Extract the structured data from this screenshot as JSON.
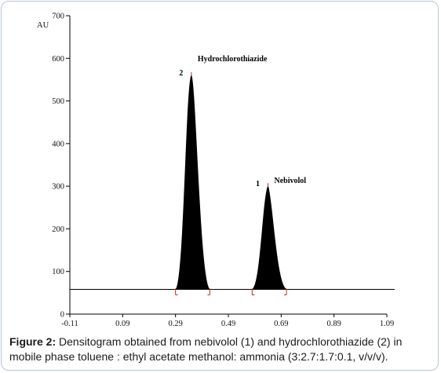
{
  "chart_data": {
    "type": "area",
    "ylabel": "AU",
    "xlabel": "",
    "xlim": [
      -0.11,
      1.09
    ],
    "ylim": [
      0,
      700
    ],
    "x_ticks": [
      -0.11,
      0.09,
      0.29,
      0.49,
      0.69,
      0.89,
      1.09
    ],
    "x_tick_labels": [
      "-0.11",
      "0.09",
      "0.29",
      "0.49",
      "0.69",
      "0.89",
      "1.09"
    ],
    "y_ticks": [
      0,
      100,
      200,
      300,
      400,
      500,
      600,
      700
    ],
    "y_tick_labels": [
      "0",
      "100",
      "200",
      "300",
      "400",
      "500",
      "600",
      "700"
    ],
    "baseline": 58,
    "peaks": [
      {
        "number": "2",
        "name": "Hydrochlorothiazide",
        "rf": 0.35,
        "height": 560,
        "start": 0.29,
        "end": 0.42
      },
      {
        "number": "1",
        "name": "Nebivolol",
        "rf": 0.64,
        "height": 300,
        "start": 0.58,
        "end": 0.71
      }
    ],
    "colors": {
      "peak_fill": "#000000",
      "marker": "#cc2222",
      "axis": "#000000"
    }
  },
  "caption": {
    "label": "Figure 2:",
    "text": " Densitogram obtained from nebivolol (1) and hydrochlorothiazide (2) in mobile phase toluene : ethyl acetate methanol: ammonia (3:2.7:1.7:0.1, v/v/v)."
  }
}
